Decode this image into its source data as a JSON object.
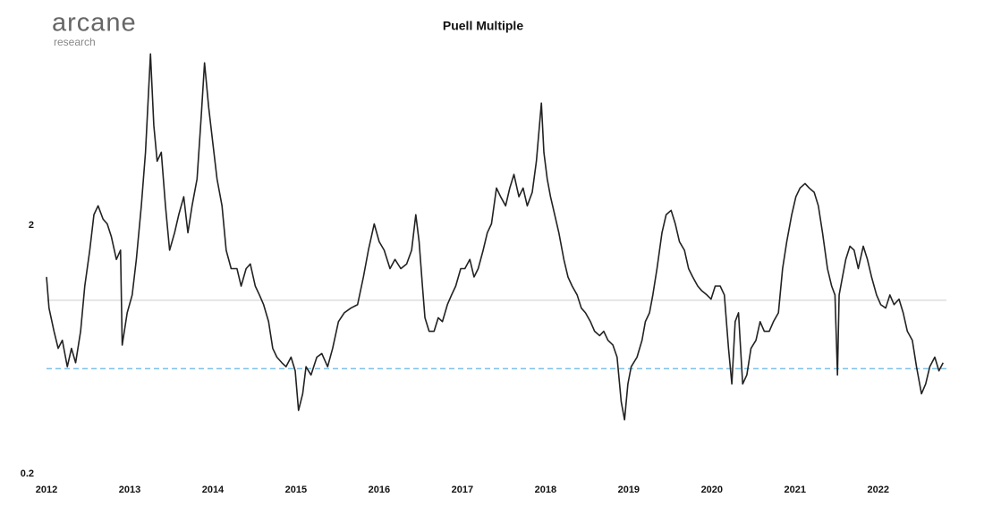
{
  "brand": {
    "name": "arcane",
    "tagline": "research"
  },
  "chart_data": {
    "type": "line",
    "title": "Puell Multiple",
    "log_y": true,
    "grid": false,
    "ylim": [
      0.2,
      10
    ],
    "yticks": [
      0.2,
      2
    ],
    "xlim": [
      2012,
      2022.82
    ],
    "xticks": [
      2012,
      2013,
      2014,
      2015,
      2016,
      2017,
      2018,
      2019,
      2020,
      2021,
      2022
    ],
    "hlines": [
      {
        "value": 1,
        "color": "#cccccc",
        "style": "solid"
      },
      {
        "value": 0.53,
        "color": "#7cc0ea",
        "style": "dashed"
      }
    ],
    "x": [
      2012.0,
      2012.03,
      2012.09,
      2012.14,
      2012.19,
      2012.25,
      2012.3,
      2012.35,
      2012.41,
      2012.46,
      2012.52,
      2012.57,
      2012.62,
      2012.68,
      2012.73,
      2012.78,
      2012.84,
      2012.89,
      2012.91,
      2012.97,
      2013.03,
      2013.08,
      2013.14,
      2013.19,
      2013.25,
      2013.29,
      2013.33,
      2013.38,
      2013.43,
      2013.48,
      2013.54,
      2013.59,
      2013.65,
      2013.7,
      2013.75,
      2013.81,
      2013.86,
      2013.9,
      2013.95,
      2014.0,
      2014.05,
      2014.11,
      2014.16,
      2014.22,
      2014.29,
      2014.34,
      2014.4,
      2014.45,
      2014.51,
      2014.56,
      2014.61,
      2014.67,
      2014.72,
      2014.77,
      2014.83,
      2014.88,
      2014.94,
      2014.99,
      2015.03,
      2015.08,
      2015.12,
      2015.18,
      2015.25,
      2015.31,
      2015.38,
      2015.44,
      2015.51,
      2015.58,
      2015.66,
      2015.74,
      2015.81,
      2015.87,
      2015.94,
      2016.0,
      2016.06,
      2016.13,
      2016.19,
      2016.26,
      2016.33,
      2016.39,
      2016.44,
      2016.48,
      2016.52,
      2016.55,
      2016.6,
      2016.66,
      2016.71,
      2016.76,
      2016.82,
      2016.87,
      2016.92,
      2016.98,
      2017.03,
      2017.09,
      2017.14,
      2017.19,
      2017.25,
      2017.3,
      2017.35,
      2017.41,
      2017.46,
      2017.52,
      2017.57,
      2017.62,
      2017.68,
      2017.73,
      2017.78,
      2017.84,
      2017.89,
      2017.95,
      2017.98,
      2018.02,
      2018.06,
      2018.11,
      2018.16,
      2018.22,
      2018.27,
      2018.32,
      2018.38,
      2018.43,
      2018.48,
      2018.54,
      2018.59,
      2018.65,
      2018.7,
      2018.75,
      2018.81,
      2018.86,
      2018.91,
      2018.95,
      2018.99,
      2019.03,
      2019.1,
      2019.16,
      2019.2,
      2019.25,
      2019.29,
      2019.34,
      2019.4,
      2019.45,
      2019.51,
      2019.56,
      2019.61,
      2019.67,
      2019.72,
      2019.77,
      2019.83,
      2019.88,
      2019.94,
      2019.99,
      2020.04,
      2020.1,
      2020.15,
      2020.2,
      2020.24,
      2020.28,
      2020.32,
      2020.37,
      2020.42,
      2020.47,
      2020.53,
      2020.58,
      2020.63,
      2020.69,
      2020.74,
      2020.8,
      2020.85,
      2020.9,
      2020.96,
      2021.01,
      2021.06,
      2021.12,
      2021.17,
      2021.23,
      2021.28,
      2021.33,
      2021.39,
      2021.44,
      2021.48,
      2021.51,
      2021.53,
      2021.57,
      2021.61,
      2021.66,
      2021.71,
      2021.76,
      2021.82,
      2021.87,
      2021.92,
      2021.98,
      2022.03,
      2022.09,
      2022.14,
      2022.19,
      2022.25,
      2022.3,
      2022.35,
      2022.41,
      2022.46,
      2022.52,
      2022.57,
      2022.62,
      2022.68,
      2022.73,
      2022.78
    ],
    "series": [
      {
        "name": "Puell Multiple",
        "color": "#222222",
        "values": [
          1.24,
          0.93,
          0.75,
          0.64,
          0.69,
          0.54,
          0.64,
          0.56,
          0.75,
          1.14,
          1.59,
          2.21,
          2.4,
          2.12,
          2.03,
          1.8,
          1.46,
          1.59,
          0.66,
          0.89,
          1.05,
          1.46,
          2.4,
          3.94,
          9.81,
          5.06,
          3.63,
          3.94,
          2.4,
          1.59,
          1.87,
          2.21,
          2.61,
          1.87,
          2.4,
          3.08,
          5.49,
          9.03,
          5.97,
          4.28,
          3.08,
          2.4,
          1.59,
          1.34,
          1.34,
          1.14,
          1.34,
          1.4,
          1.14,
          1.05,
          0.96,
          0.82,
          0.64,
          0.59,
          0.56,
          0.54,
          0.59,
          0.52,
          0.36,
          0.42,
          0.54,
          0.5,
          0.59,
          0.61,
          0.54,
          0.64,
          0.82,
          0.89,
          0.93,
          0.96,
          1.24,
          1.59,
          2.03,
          1.72,
          1.59,
          1.34,
          1.46,
          1.34,
          1.4,
          1.59,
          2.21,
          1.72,
          1.14,
          0.85,
          0.75,
          0.75,
          0.85,
          0.82,
          0.96,
          1.05,
          1.14,
          1.34,
          1.34,
          1.46,
          1.24,
          1.34,
          1.59,
          1.87,
          2.03,
          2.83,
          2.61,
          2.4,
          2.83,
          3.21,
          2.61,
          2.83,
          2.4,
          2.72,
          3.63,
          6.22,
          3.94,
          3.08,
          2.61,
          2.21,
          1.87,
          1.46,
          1.24,
          1.14,
          1.05,
          0.93,
          0.89,
          0.82,
          0.75,
          0.72,
          0.75,
          0.69,
          0.66,
          0.59,
          0.39,
          0.33,
          0.46,
          0.54,
          0.59,
          0.69,
          0.82,
          0.89,
          1.05,
          1.34,
          1.87,
          2.21,
          2.3,
          2.03,
          1.72,
          1.59,
          1.34,
          1.24,
          1.14,
          1.09,
          1.05,
          1.01,
          1.14,
          1.14,
          1.05,
          0.64,
          0.46,
          0.82,
          0.89,
          0.46,
          0.5,
          0.64,
          0.69,
          0.82,
          0.75,
          0.75,
          0.82,
          0.89,
          1.34,
          1.72,
          2.21,
          2.61,
          2.83,
          2.95,
          2.83,
          2.72,
          2.4,
          1.87,
          1.34,
          1.14,
          1.05,
          0.5,
          1.05,
          1.24,
          1.46,
          1.65,
          1.59,
          1.34,
          1.65,
          1.46,
          1.24,
          1.05,
          0.96,
          0.93,
          1.05,
          0.96,
          1.01,
          0.89,
          0.75,
          0.69,
          0.54,
          0.42,
          0.46,
          0.54,
          0.59,
          0.52,
          0.56
        ]
      }
    ]
  }
}
